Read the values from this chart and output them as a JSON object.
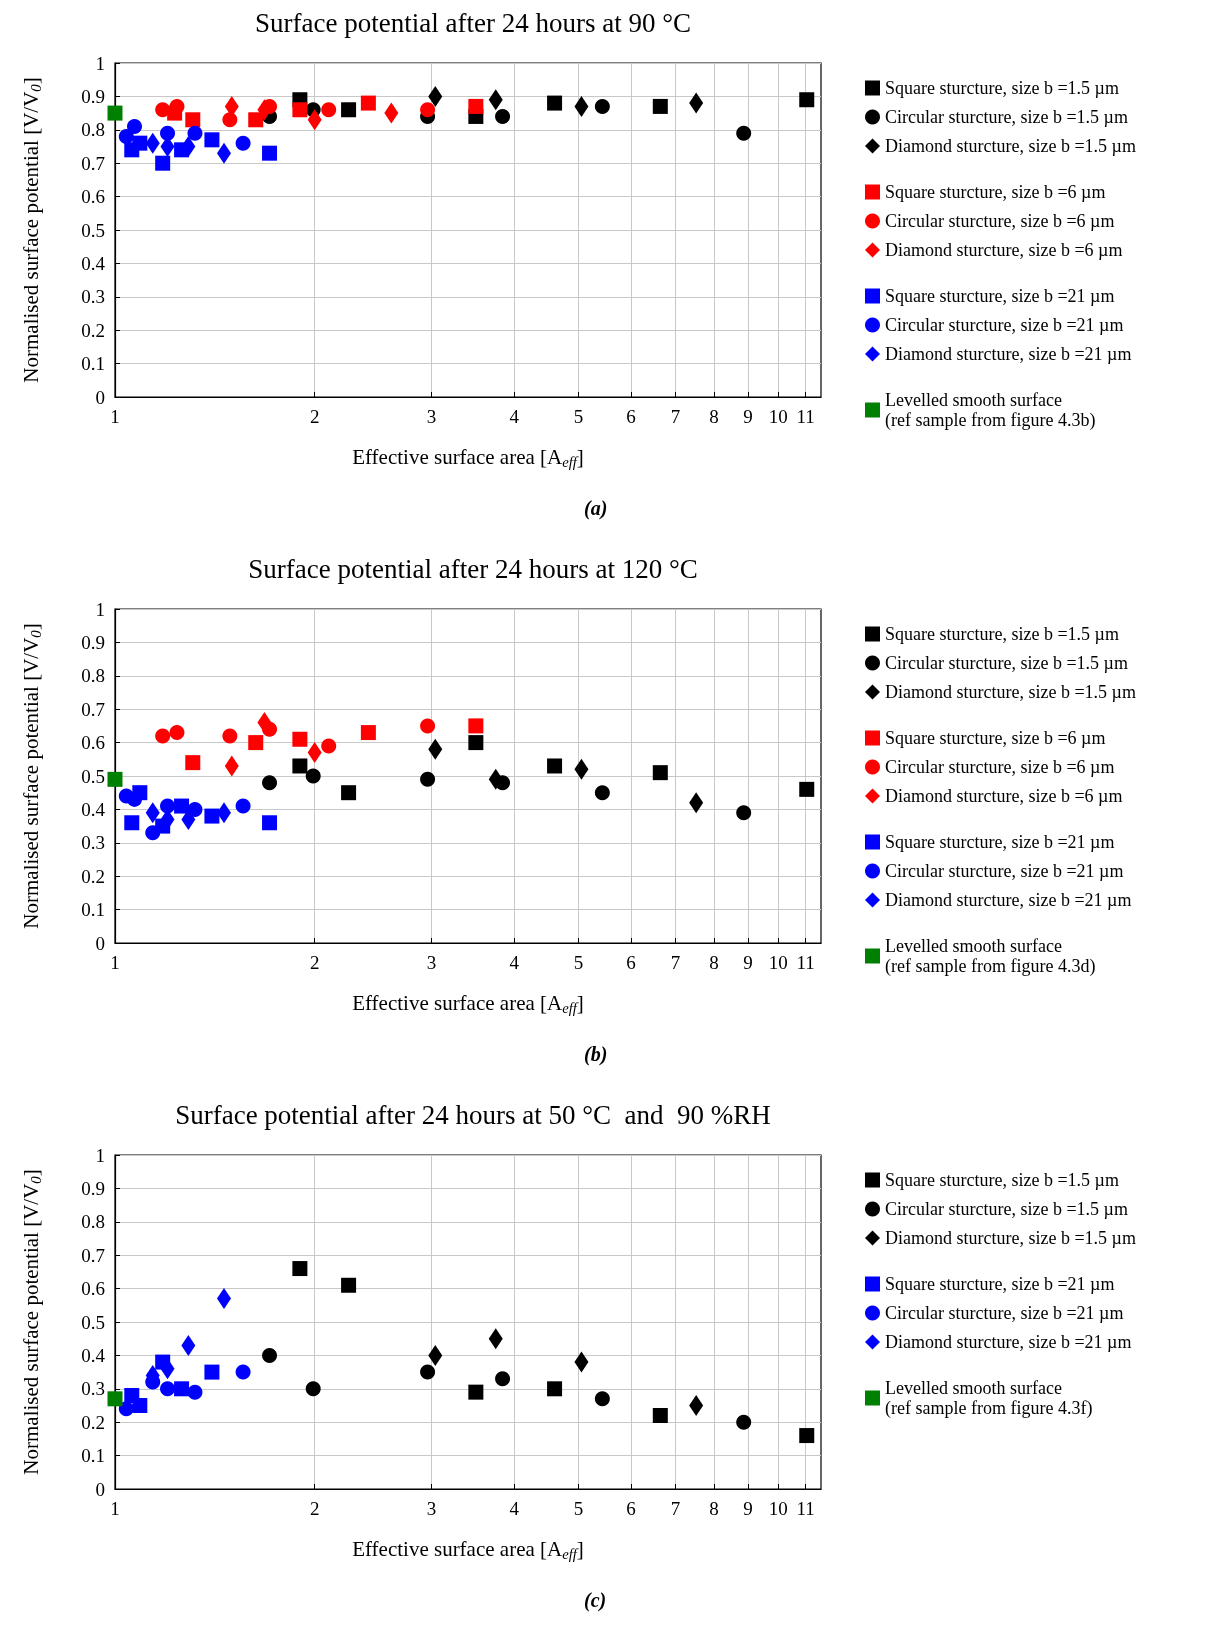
{
  "chart_data": [
    {
      "type": "scatter",
      "title": "Surface potential after 24 hours at 90 °C",
      "xlabel": "Effective surface area [A$_{eff}$]",
      "ylabel": "Normalised surface potential [V/V$_{0}$]",
      "log": "x",
      "xlim": [
        1,
        11.6
      ],
      "xticks": [
        1,
        2,
        3,
        4,
        5,
        6,
        7,
        8,
        9,
        10,
        11
      ],
      "ylim": [
        0,
        1
      ],
      "yticks": [
        0,
        0.1,
        0.2,
        0.3,
        0.4,
        0.5,
        0.6,
        0.7,
        0.8,
        0.9,
        1
      ],
      "grid": true,
      "legend": "right",
      "annotations": [
        "(a)"
      ],
      "series": [
        {
          "name": "Square sturcture, size b =1.5 µm",
          "color": "#000000",
          "marker": "square",
          "x": [
            1.9,
            2.25,
            3.5,
            4.6,
            6.64,
            11.04
          ],
          "values": [
            0.89,
            0.86,
            0.84,
            0.88,
            0.87,
            0.89
          ]
        },
        {
          "name": "Circular sturcture, size b =1.5 µm",
          "color": "#000000",
          "marker": "circle",
          "x": [
            1.71,
            1.99,
            2.96,
            3.84,
            5.43,
            8.87
          ],
          "values": [
            0.84,
            0.86,
            0.84,
            0.84,
            0.87,
            0.79
          ]
        },
        {
          "name": "Diamond sturcture, size b =1.5 µm",
          "color": "#000000",
          "marker": "diamond",
          "x": [
            3.04,
            3.75,
            5.05,
            7.52
          ],
          "values": [
            0.9,
            0.89,
            0.87,
            0.88
          ]
        },
        {
          "name": "Square sturcture, size b =6 µm",
          "color": "#ff0000",
          "marker": "square",
          "x": [
            1.23,
            1.31,
            1.63,
            1.9,
            2.41,
            3.5
          ],
          "values": [
            0.85,
            0.83,
            0.83,
            0.86,
            0.88,
            0.87
          ]
        },
        {
          "name": "Circular sturcture, size b =6 µm",
          "color": "#ff0000",
          "marker": "circle",
          "x": [
            1.18,
            1.24,
            1.49,
            1.71,
            2.1,
            2.96
          ],
          "values": [
            0.86,
            0.87,
            0.83,
            0.87,
            0.86,
            0.86
          ]
        },
        {
          "name": "Diamond sturcture, size b =6 µm",
          "color": "#ff0000",
          "marker": "diamond",
          "x": [
            1.5,
            1.68,
            2.0,
            2.61
          ],
          "values": [
            0.87,
            0.86,
            0.83,
            0.85
          ]
        },
        {
          "name": "Square sturcture, size b =21 µm",
          "color": "#0000ff",
          "marker": "square",
          "x": [
            1.06,
            1.09,
            1.18,
            1.26,
            1.4,
            1.71
          ],
          "values": [
            0.74,
            0.76,
            0.7,
            0.74,
            0.77,
            0.73
          ]
        },
        {
          "name": "Circular sturcture, size b =21 µm",
          "color": "#0000ff",
          "marker": "circle",
          "x": [
            1.04,
            1.07,
            1.2,
            1.32,
            1.56
          ],
          "values": [
            0.78,
            0.81,
            0.79,
            0.79,
            0.76
          ]
        },
        {
          "name": "Diamond sturcture, size b =21 µm",
          "color": "#0000ff",
          "marker": "diamond",
          "x": [
            1.14,
            1.2,
            1.29,
            1.46
          ],
          "values": [
            0.76,
            0.75,
            0.75,
            0.73
          ]
        },
        {
          "name": "Levelled smooth surface\n(ref sample from figure 4.3b)",
          "color": "#008000",
          "marker": "square",
          "x": [
            1
          ],
          "values": [
            0.85
          ]
        }
      ]
    },
    {
      "type": "scatter",
      "title": "Surface potential after 24 hours at 120 °C",
      "xlabel": "Effective surface area [A$_{eff}$]",
      "ylabel": "Normalised surface potential [V/V$_{0}$]",
      "log": "x",
      "xlim": [
        1,
        11.6
      ],
      "xticks": [
        1,
        2,
        3,
        4,
        5,
        6,
        7,
        8,
        9,
        10,
        11
      ],
      "ylim": [
        0,
        1
      ],
      "yticks": [
        0,
        0.1,
        0.2,
        0.3,
        0.4,
        0.5,
        0.6,
        0.7,
        0.8,
        0.9,
        1
      ],
      "grid": true,
      "legend": "right",
      "annotations": [
        "(b)"
      ],
      "series": [
        {
          "name": "Square sturcture, size b =1.5 µm",
          "color": "#000000",
          "marker": "square",
          "x": [
            1.9,
            2.25,
            3.5,
            4.6,
            6.64,
            11.04
          ],
          "values": [
            0.53,
            0.45,
            0.6,
            0.53,
            0.51,
            0.46
          ]
        },
        {
          "name": "Circular sturcture, size b =1.5 µm",
          "color": "#000000",
          "marker": "circle",
          "x": [
            1.71,
            1.99,
            2.96,
            3.84,
            5.43,
            8.87
          ],
          "values": [
            0.48,
            0.5,
            0.49,
            0.48,
            0.45,
            0.39
          ]
        },
        {
          "name": "Diamond sturcture, size b =1.5 µm",
          "color": "#000000",
          "marker": "diamond",
          "x": [
            3.04,
            3.75,
            5.05,
            7.52
          ],
          "values": [
            0.58,
            0.49,
            0.52,
            0.42
          ]
        },
        {
          "name": "Square sturcture, size b =6 µm",
          "color": "#ff0000",
          "marker": "square",
          "x": [
            1.31,
            1.63,
            1.9,
            2.41,
            3.5
          ],
          "values": [
            0.54,
            0.6,
            0.61,
            0.63,
            0.65
          ]
        },
        {
          "name": "Circular sturcture, size b =6 µm",
          "color": "#ff0000",
          "marker": "circle",
          "x": [
            1.18,
            1.24,
            1.49,
            1.71,
            2.1,
            2.96
          ],
          "values": [
            0.62,
            0.63,
            0.62,
            0.64,
            0.59,
            0.65
          ]
        },
        {
          "name": "Diamond sturcture, size b =6 µm",
          "color": "#ff0000",
          "marker": "diamond",
          "x": [
            1.5,
            1.68,
            2.0
          ],
          "values": [
            0.53,
            0.66,
            0.57
          ]
        },
        {
          "name": "Square sturcture, size b =21 µm",
          "color": "#0000ff",
          "marker": "square",
          "x": [
            1.06,
            1.09,
            1.18,
            1.26,
            1.4,
            1.71
          ],
          "values": [
            0.36,
            0.45,
            0.35,
            0.41,
            0.38,
            0.36
          ]
        },
        {
          "name": "Circular sturcture, size b =21 µm",
          "color": "#0000ff",
          "marker": "circle",
          "x": [
            1.04,
            1.07,
            1.14,
            1.2,
            1.32,
            1.56
          ],
          "values": [
            0.44,
            0.43,
            0.33,
            0.41,
            0.4,
            0.41
          ]
        },
        {
          "name": "Diamond sturcture, size b =21 µm",
          "color": "#0000ff",
          "marker": "diamond",
          "x": [
            1.14,
            1.2,
            1.29,
            1.46
          ],
          "values": [
            0.39,
            0.37,
            0.37,
            0.39
          ]
        },
        {
          "name": "Levelled smooth surface\n(ref sample from figure 4.3d)",
          "color": "#008000",
          "marker": "square",
          "x": [
            1
          ],
          "values": [
            0.49
          ]
        }
      ]
    },
    {
      "type": "scatter",
      "title": "Surface potential after 24 hours at 50 °C  and  90 %RH",
      "xlabel": "Effective surface area [A$_{eff}$]",
      "ylabel": "Normalised surface potential [V/V$_{0}$]",
      "log": "x",
      "xlim": [
        1,
        11.6
      ],
      "xticks": [
        1,
        2,
        3,
        4,
        5,
        6,
        7,
        8,
        9,
        10,
        11
      ],
      "ylim": [
        0,
        1
      ],
      "yticks": [
        0,
        0.1,
        0.2,
        0.3,
        0.4,
        0.5,
        0.6,
        0.7,
        0.8,
        0.9,
        1
      ],
      "grid": true,
      "legend": "right",
      "annotations": [
        "(c)"
      ],
      "series": [
        {
          "name": "Square sturcture, size b =1.5 µm",
          "color": "#000000",
          "marker": "square",
          "x": [
            1.9,
            2.25,
            3.5,
            4.6,
            6.64,
            11.04
          ],
          "values": [
            0.66,
            0.61,
            0.29,
            0.3,
            0.22,
            0.16
          ]
        },
        {
          "name": "Circular sturcture, size b =1.5 µm",
          "color": "#000000",
          "marker": "circle",
          "x": [
            1.71,
            1.99,
            2.96,
            3.84,
            5.43,
            8.87
          ],
          "values": [
            0.4,
            0.3,
            0.35,
            0.33,
            0.27,
            0.2
          ]
        },
        {
          "name": "Diamond sturcture, size b =1.5 µm",
          "color": "#000000",
          "marker": "diamond",
          "x": [
            3.04,
            3.75,
            5.05,
            7.52
          ],
          "values": [
            0.4,
            0.45,
            0.38,
            0.25
          ]
        },
        {
          "name": "Square sturcture, size b =21 µm",
          "color": "#0000ff",
          "marker": "square",
          "x": [
            1.06,
            1.09,
            1.18,
            1.26,
            1.4
          ],
          "values": [
            0.28,
            0.25,
            0.38,
            0.3,
            0.35
          ]
        },
        {
          "name": "Circular sturcture, size b =21 µm",
          "color": "#0000ff",
          "marker": "circle",
          "x": [
            1.04,
            1.14,
            1.2,
            1.32,
            1.56
          ],
          "values": [
            0.24,
            0.32,
            0.3,
            0.29,
            0.35
          ]
        },
        {
          "name": "Diamond sturcture, size b =21 µm",
          "color": "#0000ff",
          "marker": "diamond",
          "x": [
            1.14,
            1.2,
            1.29,
            1.46
          ],
          "values": [
            0.34,
            0.36,
            0.43,
            0.57
          ]
        },
        {
          "name": "Levelled smooth surface\n(ref sample from figure 4.3f)",
          "color": "#008000",
          "marker": "square",
          "x": [
            1
          ],
          "values": [
            0.27
          ]
        }
      ]
    }
  ]
}
